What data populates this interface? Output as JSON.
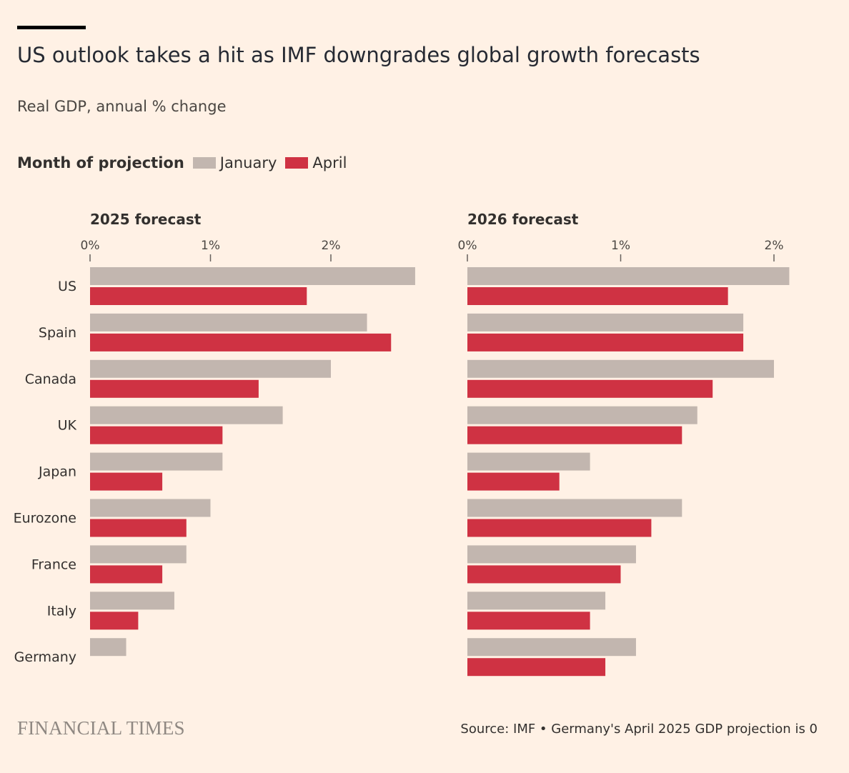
{
  "header": {
    "title": "US outlook takes a hit as IMF downgrades global growth forecasts",
    "subtitle": "Real GDP, annual % change"
  },
  "legend": {
    "title": "Month of projection",
    "items": [
      {
        "label": "January",
        "color": "#C2B6AF"
      },
      {
        "label": "April",
        "color": "#CF3243"
      }
    ]
  },
  "chart_data": [
    {
      "type": "bar",
      "orientation": "horizontal",
      "title": "2025 forecast",
      "categories": [
        "US",
        "Spain",
        "Canada",
        "UK",
        "Japan",
        "Eurozone",
        "France",
        "Italy",
        "Germany"
      ],
      "series": [
        {
          "name": "January",
          "values": [
            2.7,
            2.3,
            2.0,
            1.6,
            1.1,
            1.0,
            0.8,
            0.7,
            0.3
          ]
        },
        {
          "name": "April",
          "values": [
            1.8,
            2.5,
            1.4,
            1.1,
            0.6,
            0.8,
            0.6,
            0.4,
            0.0
          ]
        }
      ],
      "xticks": [
        "0%",
        "1%",
        "2%"
      ],
      "xlim": [
        0,
        2.8
      ]
    },
    {
      "type": "bar",
      "orientation": "horizontal",
      "title": "2026 forecast",
      "categories": [
        "US",
        "Spain",
        "Canada",
        "UK",
        "Japan",
        "Eurozone",
        "France",
        "Italy",
        "Germany"
      ],
      "series": [
        {
          "name": "January",
          "values": [
            2.1,
            1.8,
            2.0,
            1.5,
            0.8,
            1.4,
            1.1,
            0.9,
            1.1
          ]
        },
        {
          "name": "April",
          "values": [
            1.7,
            1.8,
            1.6,
            1.4,
            0.6,
            1.2,
            1.0,
            0.8,
            0.9
          ]
        }
      ],
      "xticks": [
        "0%",
        "1%",
        "2%"
      ],
      "xlim": [
        0,
        2.2
      ]
    }
  ],
  "footer": {
    "logo": "FINANCIAL TIMES",
    "source": "Source: IMF • Germany's April 2025 GDP projection is 0"
  }
}
